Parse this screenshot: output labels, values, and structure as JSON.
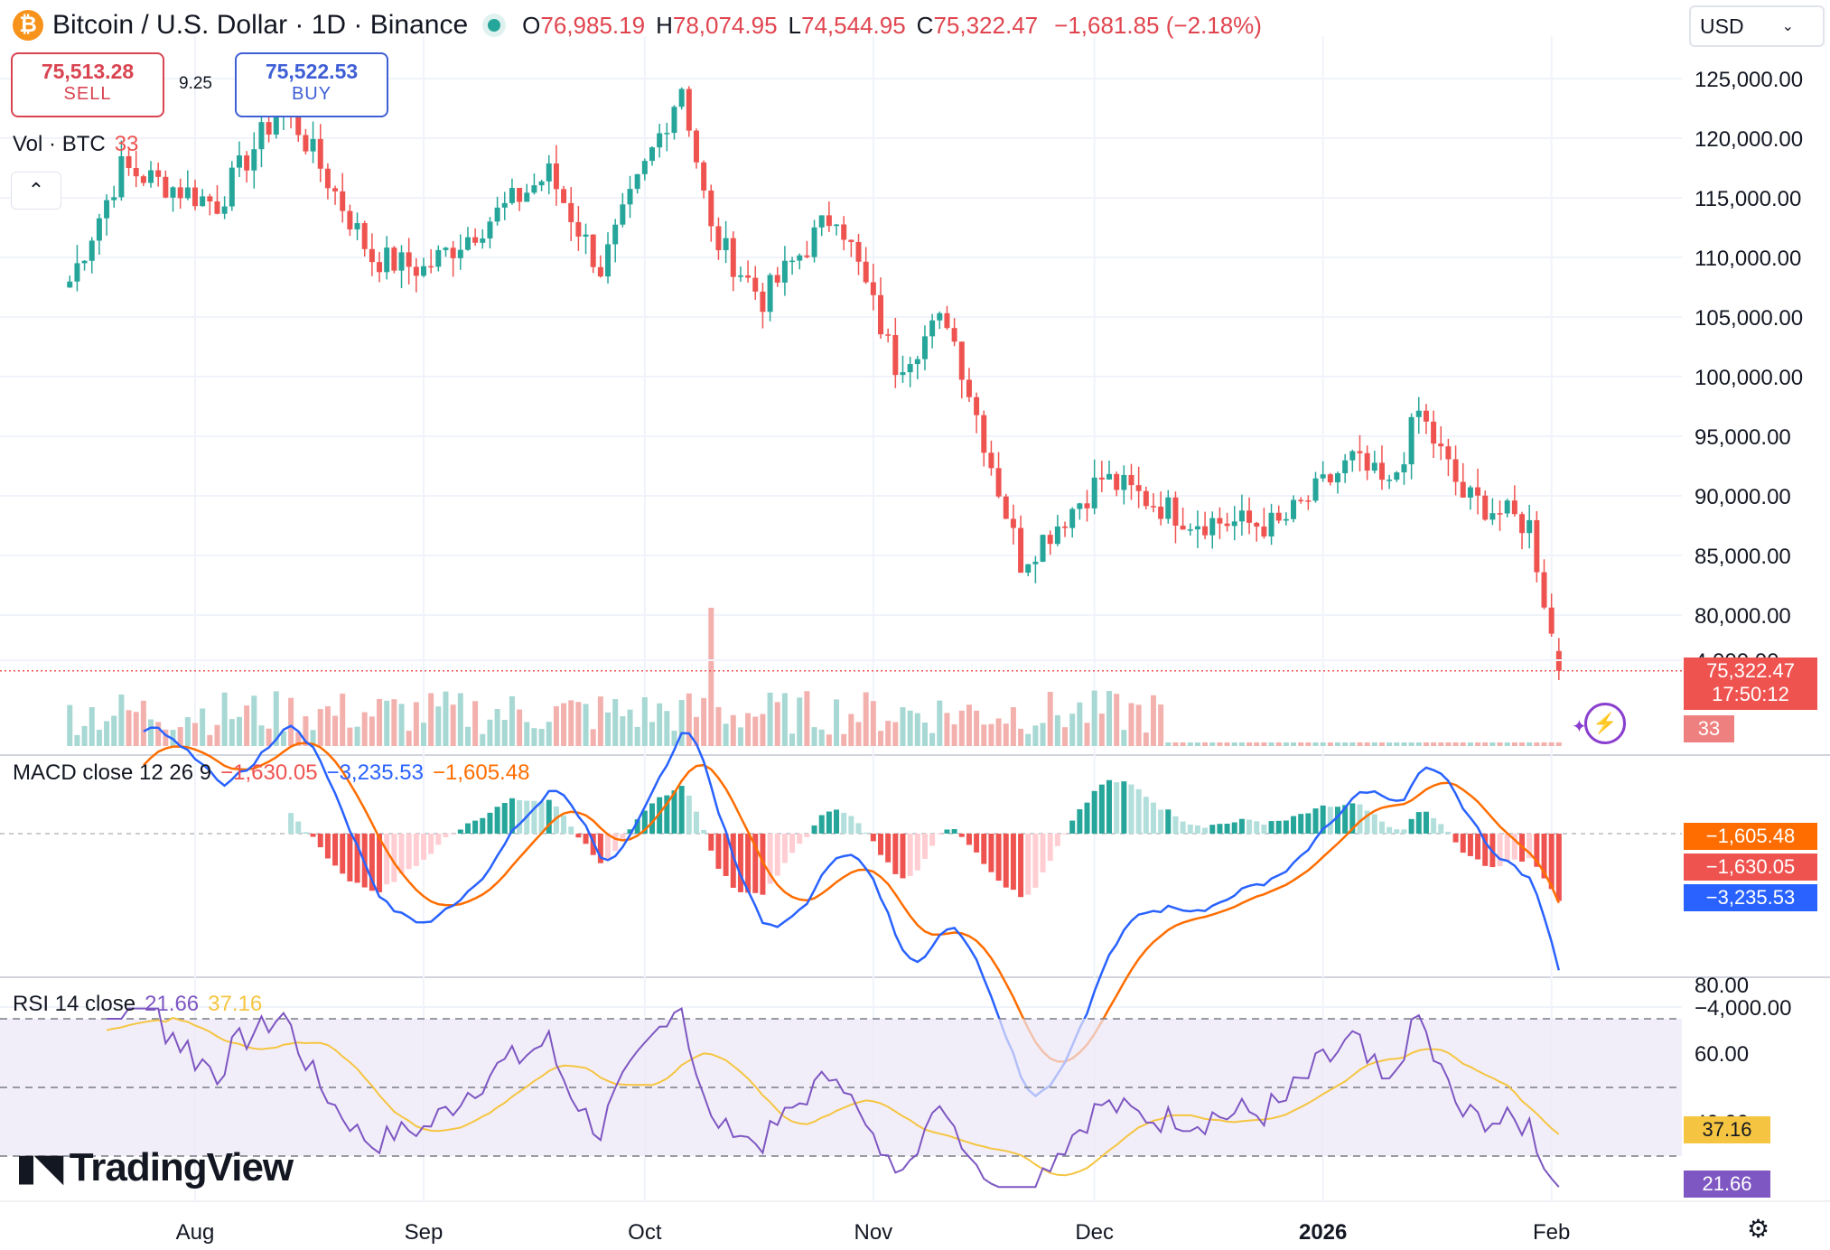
{
  "header": {
    "title": "Bitcoin / U.S. Dollar · 1D · Binance",
    "coin_icon": "bitcoin-icon",
    "ohlc": [
      {
        "k": "O",
        "v": "76,985.19"
      },
      {
        "k": "H",
        "v": "78,074.95"
      },
      {
        "k": "L",
        "v": "74,544.95"
      },
      {
        "k": "C",
        "v": "75,322.47"
      }
    ],
    "change": "−1,681.85 (−2.18%)"
  },
  "trade": {
    "sell_price": "75,513.28",
    "sell_label": "SELL",
    "spread": "9.25",
    "buy_price": "75,522.53",
    "buy_label": "BUY"
  },
  "currency": "USD",
  "volume": {
    "label": "Vol · BTC",
    "value": "33",
    "scale_label": "4,000.00"
  },
  "macd": {
    "label": "MACD close 12 26 9",
    "hist": "−1,630.05",
    "macd": "−3,235.53",
    "signal": "−1,605.48",
    "axis_top": "4,000.00",
    "axis_bottom": "−4,000.00"
  },
  "rsi": {
    "label": "RSI 14 close",
    "rsi": "21.66",
    "ma": "37.16"
  },
  "price_tag": {
    "price": "75,322.47",
    "countdown": "17:50:12",
    "vol": "33"
  },
  "logo": "TradingView",
  "colors": {
    "up": "#26a69a",
    "down": "#ef5350",
    "macd_line": "#2962ff",
    "signal_line": "#ff6d00",
    "rsi_line": "#7e57c2",
    "rsi_ma": "#f5c542"
  },
  "chart_data": {
    "type": "candlestick",
    "title": "Bitcoin / U.S. Dollar · 1D · Binance",
    "y_ticks": [
      125000,
      120000,
      115000,
      110000,
      105000,
      100000,
      95000,
      90000,
      85000,
      80000
    ],
    "y_tick_labels": [
      "125,000.00",
      "120,000.00",
      "115,000.00",
      "110,000.00",
      "105,000.00",
      "100,000.00",
      "95,000.00",
      "90,000.00",
      "85,000.00",
      "80,000.00"
    ],
    "x_tick_labels": [
      "Aug",
      "Sep",
      "Oct",
      "Nov",
      "Dec",
      "2026",
      "Feb"
    ],
    "close_anchors": [
      {
        "date": "2025-07-15",
        "close": 108000
      },
      {
        "date": "2025-07-22",
        "close": 117500
      },
      {
        "date": "2025-08-04",
        "close": 114500
      },
      {
        "date": "2025-08-13",
        "close": 123000
      },
      {
        "date": "2025-08-25",
        "close": 110000
      },
      {
        "date": "2025-09-01",
        "close": 109000
      },
      {
        "date": "2025-09-18",
        "close": 117000
      },
      {
        "date": "2025-09-25",
        "close": 109000
      },
      {
        "date": "2025-10-06",
        "close": 124500
      },
      {
        "date": "2025-10-10",
        "close": 112000
      },
      {
        "date": "2025-10-17",
        "close": 106500
      },
      {
        "date": "2025-10-27",
        "close": 114000
      },
      {
        "date": "2025-11-04",
        "close": 101000
      },
      {
        "date": "2025-11-11",
        "close": 105000
      },
      {
        "date": "2025-11-21",
        "close": 84500
      },
      {
        "date": "2025-12-02",
        "close": 91500
      },
      {
        "date": "2025-12-14",
        "close": 88000
      },
      {
        "date": "2025-12-26",
        "close": 87500
      },
      {
        "date": "2026-01-05",
        "close": 93000
      },
      {
        "date": "2026-01-10",
        "close": 90500
      },
      {
        "date": "2026-01-14",
        "close": 97000
      },
      {
        "date": "2026-01-20",
        "close": 90000
      },
      {
        "date": "2026-01-29",
        "close": 87500
      },
      {
        "date": "2026-02-02",
        "close": 75322.47
      }
    ],
    "last": {
      "open": 76985.19,
      "high": 78074.95,
      "low": 74544.95,
      "close": 75322.47
    },
    "macd_range": [
      -4000,
      4000
    ],
    "rsi_levels": [
      70,
      50,
      30
    ],
    "rsi_ticks": [
      80,
      60,
      40
    ],
    "rsi_tick_labels": [
      "80.00",
      "60.00",
      "40.00"
    ],
    "grid": true
  }
}
